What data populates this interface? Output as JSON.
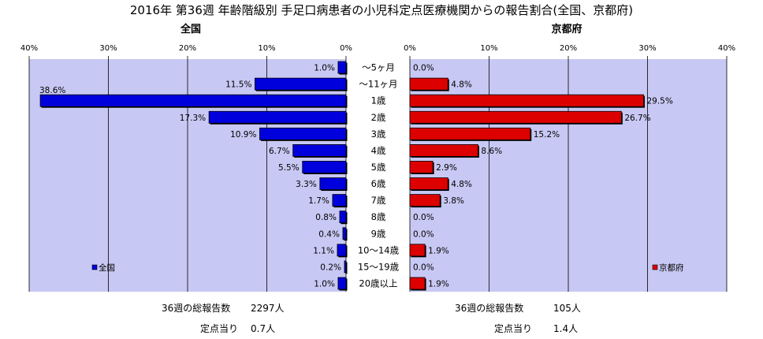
{
  "title": "2016年 第36週 年齢階級別 手足口病患者の小児科定点医療機関からの報告割合(全国、京都府)",
  "colors": {
    "left_bar": "#0000dd",
    "right_bar": "#dd0000",
    "plot_bg": "#c8c8f4",
    "grid": "#000000"
  },
  "chart_data": [
    {
      "type": "bar",
      "orientation": "horizontal",
      "direction": "right-to-left",
      "title": "全国",
      "legend": {
        "label": "全国",
        "placement": "bottom-left"
      },
      "categories": [
        "～5ヶ月",
        "～11ヶ月",
        "1歳",
        "2歳",
        "3歳",
        "4歳",
        "5歳",
        "6歳",
        "7歳",
        "8歳",
        "9歳",
        "10～14歳",
        "15～19歳",
        "20歳以上"
      ],
      "values": [
        1.0,
        11.5,
        38.6,
        17.3,
        10.9,
        6.7,
        5.5,
        3.3,
        1.7,
        0.8,
        0.4,
        1.1,
        0.2,
        1.0
      ],
      "labels": [
        "1.0%",
        "11.5%",
        "38.6%",
        "17.3%",
        "10.9%",
        "6.7%",
        "5.5%",
        "3.3%",
        "1.7%",
        "0.8%",
        "0.4%",
        "1.1%",
        "0.2%",
        "1.0%"
      ],
      "xlim": [
        0,
        40
      ],
      "ticks": [
        "40%",
        "30%",
        "20%",
        "10%",
        "0%"
      ],
      "grid": true
    },
    {
      "type": "bar",
      "orientation": "horizontal",
      "direction": "left-to-right",
      "title": "京都府",
      "legend": {
        "label": "京都府",
        "placement": "bottom-right"
      },
      "categories": [
        "～5ヶ月",
        "～11ヶ月",
        "1歳",
        "2歳",
        "3歳",
        "4歳",
        "5歳",
        "6歳",
        "7歳",
        "8歳",
        "9歳",
        "10～14歳",
        "15～19歳",
        "20歳以上"
      ],
      "values": [
        0.0,
        4.8,
        29.5,
        26.7,
        15.2,
        8.6,
        2.9,
        4.8,
        3.8,
        0.0,
        0.0,
        1.9,
        0.0,
        1.9
      ],
      "labels": [
        "0.0%",
        "4.8%",
        "29.5%",
        "26.7%",
        "15.2%",
        "8.6%",
        "2.9%",
        "4.8%",
        "3.8%",
        "0.0%",
        "0.0%",
        "1.9%",
        "0.0%",
        "1.9%"
      ],
      "xlim": [
        0,
        40
      ],
      "ticks": [
        "0%",
        "10%",
        "20%",
        "30%",
        "40%"
      ],
      "grid": true
    }
  ],
  "footer": {
    "left": {
      "total_label": "36週の総報告数",
      "total_value": "2297人",
      "per_label": "定点当り",
      "per_value": "0.7人"
    },
    "right": {
      "total_label": "36週の総報告数",
      "total_value": "105人",
      "per_label": "定点当り",
      "per_value": "1.4人"
    }
  }
}
